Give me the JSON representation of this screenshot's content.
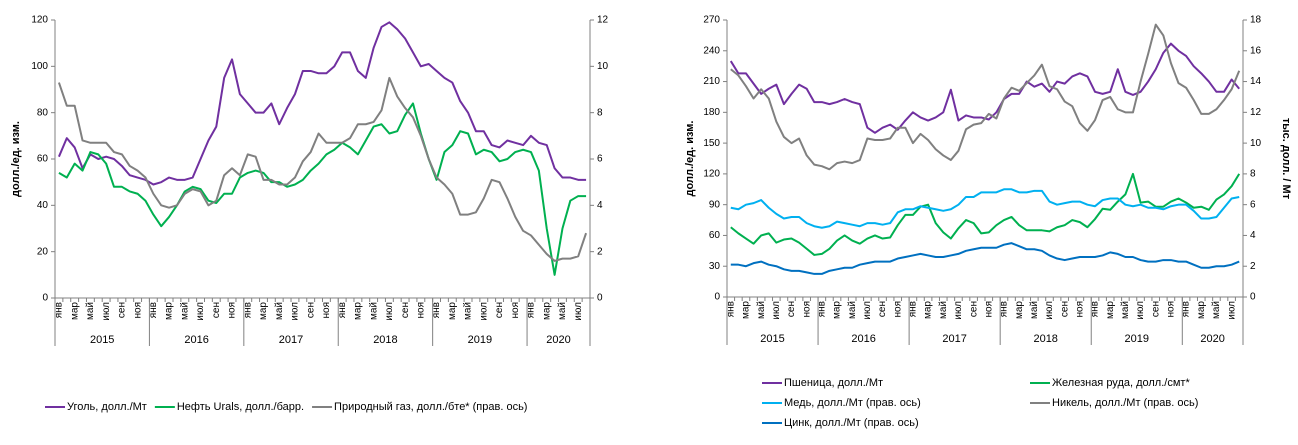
{
  "chart_data": [
    {
      "type": "line",
      "y_label": "долл./ед. изм.",
      "categories": [
        "янв",
        null,
        "мар",
        null,
        "май",
        null,
        "июл",
        null,
        "сен",
        null,
        "ноя",
        null,
        "янв",
        null,
        "мар",
        null,
        "май",
        null,
        "июл",
        null,
        "сен",
        null,
        "ноя",
        null,
        "янв",
        null,
        "мар",
        null,
        "май",
        null,
        "июл",
        null,
        "сен",
        null,
        "ноя",
        null,
        "янв",
        null,
        "мар",
        null,
        "май",
        null,
        "июл",
        null,
        "сен",
        null,
        "ноя",
        null,
        "янв",
        null,
        "мар",
        null,
        "май",
        null,
        "июл",
        null,
        "сен",
        null,
        "ноя",
        null,
        "янв",
        null,
        "мар",
        null,
        "май",
        null,
        "июл",
        null
      ],
      "years": [
        "2015",
        "2016",
        "2017",
        "2018",
        "2019",
        "2020"
      ],
      "ylim": [
        0,
        120
      ],
      "yticks": [
        0,
        20,
        40,
        60,
        80,
        100,
        120
      ],
      "y2lim": [
        0,
        12
      ],
      "y2ticks": [
        0,
        2,
        4,
        6,
        8,
        10,
        12
      ],
      "legend": "bottom",
      "series": [
        {
          "name": "Уголь, долл./Мт",
          "color": "#7030a0",
          "values": [
            61,
            69,
            65,
            56,
            62,
            60,
            61,
            60,
            57,
            53,
            52,
            51,
            49,
            50,
            52,
            51,
            51,
            52,
            60,
            68,
            74,
            95,
            103,
            88,
            84,
            80,
            80,
            84,
            75,
            82,
            88,
            98,
            98,
            97,
            97,
            100,
            106,
            106,
            98,
            95,
            108,
            117,
            119,
            116,
            112,
            106,
            100,
            101,
            98,
            95,
            93,
            85,
            80,
            72,
            72,
            66,
            65,
            68,
            67,
            66,
            70,
            67,
            66,
            56,
            52,
            52,
            51,
            51
          ]
        },
        {
          "name": "Нефть Urals, долл./барр.",
          "color": "#00b050",
          "values": [
            54,
            52,
            58,
            55,
            63,
            62,
            58,
            48,
            48,
            46,
            45,
            42,
            36,
            31,
            35,
            40,
            46,
            48,
            47,
            42,
            41,
            45,
            45,
            52,
            54,
            55,
            54,
            50,
            50,
            48,
            49,
            51,
            55,
            58,
            62,
            64,
            67,
            65,
            62,
            68,
            74,
            75,
            71,
            72,
            79,
            84,
            71,
            60,
            51,
            63,
            66,
            72,
            71,
            62,
            64,
            63,
            59,
            60,
            63,
            64,
            63,
            55,
            30,
            10,
            30,
            42,
            44,
            44
          ]
        },
        {
          "name": "Природный газ, долл./бте* (прав. ось)",
          "color": "#808080",
          "axis": "y2",
          "values": [
            9.3,
            8.3,
            8.3,
            6.8,
            6.7,
            6.7,
            6.7,
            6.3,
            6.2,
            5.7,
            5.5,
            5.2,
            4.5,
            4.0,
            3.9,
            4.0,
            4.5,
            4.7,
            4.6,
            4.0,
            4.2,
            5.3,
            5.6,
            5.3,
            6.2,
            6.1,
            5.1,
            5.1,
            4.9,
            4.9,
            5.2,
            5.9,
            6.3,
            7.1,
            6.7,
            6.7,
            6.7,
            6.9,
            7.5,
            7.5,
            7.6,
            8.1,
            9.5,
            8.7,
            8.2,
            7.8,
            7.0,
            6.0,
            5.2,
            4.9,
            4.5,
            3.6,
            3.6,
            3.7,
            4.3,
            5.1,
            5.0,
            4.3,
            3.5,
            2.9,
            2.7,
            2.3,
            1.9,
            1.6,
            1.7,
            1.7,
            1.8,
            2.8
          ]
        }
      ]
    },
    {
      "type": "line",
      "y_label": "долл./ед. изм.",
      "y2_label": "тыс. долл. / Мт",
      "categories": [
        "янв",
        null,
        "мар",
        null,
        "май",
        null,
        "июл",
        null,
        "сен",
        null,
        "ноя",
        null,
        "янв",
        null,
        "мар",
        null,
        "май",
        null,
        "июл",
        null,
        "сен",
        null,
        "ноя",
        null,
        "янв",
        null,
        "мар",
        null,
        "май",
        null,
        "июл",
        null,
        "сен",
        null,
        "ноя",
        null,
        "янв",
        null,
        "мар",
        null,
        "май",
        null,
        "июл",
        null,
        "сен",
        null,
        "ноя",
        null,
        "янв",
        null,
        "мар",
        null,
        "май",
        null,
        "июл",
        null,
        "сен",
        null,
        "ноя",
        null,
        "янв",
        null,
        "мар",
        null,
        "май",
        null,
        "июл",
        null
      ],
      "years": [
        "2015",
        "2016",
        "2017",
        "2018",
        "2019",
        "2020"
      ],
      "ylim": [
        0,
        270
      ],
      "yticks": [
        0,
        30,
        60,
        90,
        120,
        150,
        180,
        210,
        240,
        270
      ],
      "y2lim": [
        0,
        18
      ],
      "y2ticks": [
        0,
        2,
        4,
        6,
        8,
        10,
        12,
        14,
        16,
        18
      ],
      "legend": "bottom",
      "series": [
        {
          "name": "Пшеница, долл./Мт",
          "color": "#7030a0",
          "values": [
            230,
            218,
            218,
            208,
            198,
            203,
            207,
            188,
            198,
            207,
            203,
            190,
            190,
            188,
            190,
            193,
            190,
            188,
            165,
            160,
            165,
            168,
            163,
            172,
            180,
            175,
            172,
            175,
            180,
            202,
            172,
            177,
            175,
            175,
            173,
            180,
            193,
            198,
            198,
            210,
            205,
            208,
            200,
            210,
            208,
            215,
            218,
            215,
            200,
            198,
            200,
            222,
            200,
            197,
            200,
            210,
            222,
            238,
            247,
            240,
            235,
            225,
            218,
            210,
            200,
            200,
            212,
            203
          ]
        },
        {
          "name": "Железная руда, долл./смт*",
          "color": "#00b050",
          "values": [
            68,
            62,
            57,
            52,
            60,
            62,
            53,
            56,
            57,
            53,
            47,
            41,
            42,
            47,
            55,
            60,
            55,
            52,
            57,
            60,
            57,
            58,
            70,
            80,
            80,
            88,
            90,
            72,
            63,
            57,
            67,
            75,
            72,
            62,
            63,
            70,
            75,
            78,
            70,
            65,
            65,
            65,
            64,
            68,
            70,
            75,
            73,
            68,
            76,
            86,
            85,
            93,
            100,
            120,
            92,
            93,
            88,
            88,
            93,
            96,
            92,
            87,
            88,
            85,
            95,
            100,
            108,
            120
          ]
        },
        {
          "name": "Медь, долл./Мт (прав. ось)",
          "color": "#00b0f0",
          "axis": "y2",
          "values": [
            5.8,
            5.7,
            6.0,
            6.1,
            6.3,
            5.8,
            5.4,
            5.1,
            5.2,
            5.2,
            4.8,
            4.6,
            4.5,
            4.6,
            4.9,
            4.8,
            4.7,
            4.6,
            4.8,
            4.8,
            4.7,
            4.8,
            5.5,
            5.7,
            5.7,
            5.9,
            5.8,
            5.7,
            5.6,
            5.7,
            6.0,
            6.5,
            6.5,
            6.8,
            6.8,
            6.8,
            7.0,
            7.0,
            6.8,
            6.8,
            6.9,
            6.9,
            6.2,
            6.0,
            6.1,
            6.2,
            6.2,
            6.0,
            5.9,
            6.3,
            6.4,
            6.4,
            6.0,
            5.9,
            6.0,
            5.8,
            5.8,
            5.7,
            5.9,
            6.0,
            6.0,
            5.6,
            5.1,
            5.1,
            5.2,
            5.8,
            6.4,
            6.5
          ]
        },
        {
          "name": "Никель, долл./Мт (прав. ось)",
          "color": "#808080",
          "axis": "y2",
          "values": [
            14.8,
            14.4,
            13.7,
            12.9,
            13.5,
            12.9,
            11.4,
            10.4,
            10.0,
            10.3,
            9.2,
            8.6,
            8.5,
            8.3,
            8.7,
            8.8,
            8.7,
            8.9,
            10.3,
            10.2,
            10.2,
            10.3,
            11.0,
            11.0,
            10.0,
            10.6,
            10.2,
            9.6,
            9.2,
            8.9,
            9.5,
            10.9,
            11.2,
            11.3,
            11.9,
            11.6,
            12.9,
            13.6,
            13.4,
            13.9,
            14.4,
            15.1,
            13.7,
            13.5,
            12.7,
            12.4,
            11.3,
            10.8,
            11.5,
            12.8,
            13.0,
            12.2,
            12.0,
            12.0,
            14.0,
            15.8,
            17.7,
            17.0,
            15.2,
            13.9,
            13.6,
            12.8,
            11.9,
            11.9,
            12.2,
            12.8,
            13.5,
            14.7
          ]
        },
        {
          "name": "Цинк, долл./Мт (прав. ось)",
          "color": "#0070c0",
          "axis": "y2",
          "values": [
            2.1,
            2.1,
            2.0,
            2.2,
            2.3,
            2.1,
            2.0,
            1.8,
            1.7,
            1.7,
            1.6,
            1.5,
            1.5,
            1.7,
            1.8,
            1.9,
            1.9,
            2.1,
            2.2,
            2.3,
            2.3,
            2.3,
            2.5,
            2.6,
            2.7,
            2.8,
            2.7,
            2.6,
            2.6,
            2.7,
            2.8,
            3.0,
            3.1,
            3.2,
            3.2,
            3.2,
            3.4,
            3.5,
            3.3,
            3.1,
            3.1,
            3.0,
            2.7,
            2.5,
            2.4,
            2.5,
            2.6,
            2.6,
            2.6,
            2.7,
            2.9,
            2.8,
            2.6,
            2.6,
            2.4,
            2.3,
            2.3,
            2.4,
            2.4,
            2.3,
            2.3,
            2.1,
            1.9,
            1.9,
            2.0,
            2.0,
            2.1,
            2.3
          ]
        }
      ]
    }
  ]
}
